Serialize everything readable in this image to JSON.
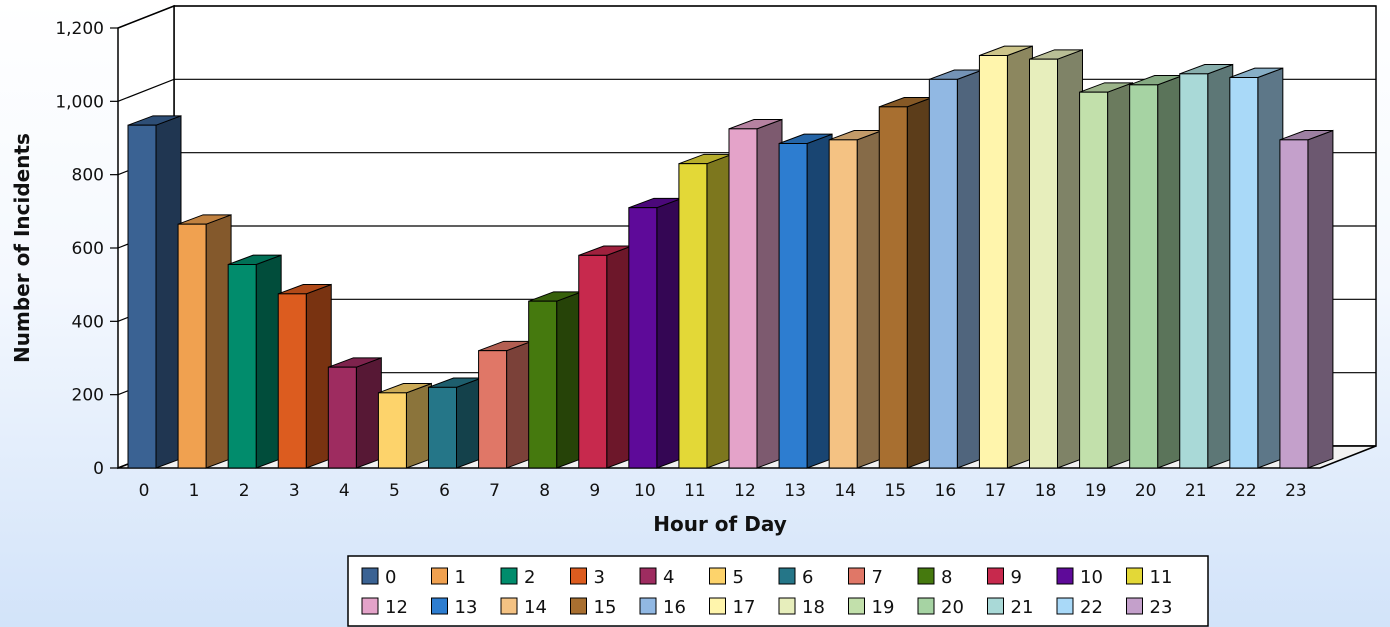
{
  "chart_data": {
    "type": "bar",
    "title": "",
    "xlabel": "Hour of Day",
    "ylabel": "Number of Incidents",
    "ylim": [
      0,
      1200
    ],
    "yticks": [
      "0",
      "200",
      "400",
      "600",
      "800",
      "1,000",
      "1,200"
    ],
    "ytick_values": [
      0,
      200,
      400,
      600,
      800,
      1000,
      1200
    ],
    "grid": true,
    "legend_position": "bottom",
    "categories": [
      "0",
      "1",
      "2",
      "3",
      "4",
      "5",
      "6",
      "7",
      "8",
      "9",
      "10",
      "11",
      "12",
      "13",
      "14",
      "15",
      "16",
      "17",
      "18",
      "19",
      "20",
      "21",
      "22",
      "23"
    ],
    "values": [
      935,
      665,
      555,
      475,
      275,
      205,
      220,
      320,
      455,
      580,
      710,
      830,
      925,
      885,
      895,
      985,
      1060,
      1125,
      1115,
      1025,
      1045,
      1075,
      1065,
      895
    ],
    "colors": [
      "#3a6293",
      "#f0a150",
      "#018c6c",
      "#dc5c1f",
      "#9e2c60",
      "#fdd36b",
      "#257688",
      "#e07767",
      "#45790e",
      "#c7294d",
      "#5e0a99",
      "#e3d837",
      "#e4a3c9",
      "#2d7dd0",
      "#f4c283",
      "#a86f30",
      "#91b8e3",
      "#fff5ac",
      "#e7eebc",
      "#c2e0ab",
      "#a6d3a3",
      "#a9d9d7",
      "#a9d9f8",
      "#c4a0cb"
    ]
  }
}
